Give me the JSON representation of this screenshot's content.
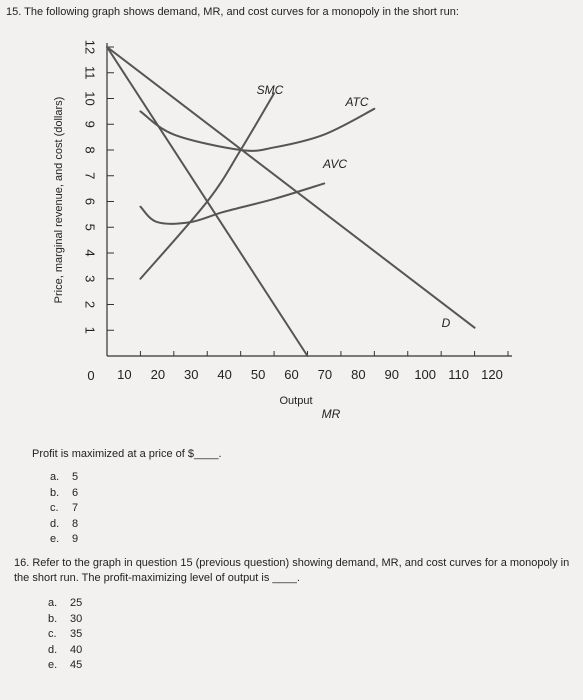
{
  "q15": {
    "title": "15. The following graph shows demand, MR, and cost curves for a monopoly in the short run:",
    "prompt": "Profit is maximized at a price of $____.",
    "options": [
      {
        "letter": "a.",
        "text": "5"
      },
      {
        "letter": "b.",
        "text": "6"
      },
      {
        "letter": "c.",
        "text": "7"
      },
      {
        "letter": "d.",
        "text": "8"
      },
      {
        "letter": "e.",
        "text": "9"
      }
    ]
  },
  "q16": {
    "text": "16. Refer to the graph in question 15 (previous question) showing demand, MR, and cost curves for a monopoly in the short run. The profit-maximizing level of output is ____.",
    "options": [
      {
        "letter": "a.",
        "text": "25"
      },
      {
        "letter": "b.",
        "text": "30"
      },
      {
        "letter": "c.",
        "text": "35"
      },
      {
        "letter": "d.",
        "text": "40"
      },
      {
        "letter": "e.",
        "text": "45"
      }
    ]
  },
  "chart_data": {
    "type": "line",
    "ylabel": "Price, marginal revenue, and cost (dollars)",
    "xlabel": "Output",
    "xlim": [
      0,
      120
    ],
    "ylim": [
      0,
      12
    ],
    "x_ticks": [
      10,
      20,
      30,
      40,
      50,
      60,
      70,
      80,
      90,
      100,
      110,
      120
    ],
    "y_ticks": [
      1,
      2,
      3,
      4,
      5,
      6,
      7,
      8,
      9,
      10,
      11,
      12
    ],
    "origin_label": "0",
    "series": [
      {
        "name": "D",
        "points": [
          [
            0,
            12
          ],
          [
            110,
            1.1
          ]
        ]
      },
      {
        "name": "MR",
        "points": [
          [
            0,
            12
          ],
          [
            60,
            0
          ]
        ]
      },
      {
        "name": "SMC",
        "points": [
          [
            10,
            3
          ],
          [
            30,
            6
          ],
          [
            40,
            8
          ],
          [
            50,
            10.2
          ]
        ]
      },
      {
        "name": "ATC",
        "points": [
          [
            10,
            9.5
          ],
          [
            20,
            8.6
          ],
          [
            40,
            8
          ],
          [
            50,
            8.1
          ],
          [
            65,
            8.6
          ],
          [
            80,
            9.6
          ]
        ]
      },
      {
        "name": "AVC",
        "points": [
          [
            10,
            5.8
          ],
          [
            15,
            5.2
          ],
          [
            25,
            5.2
          ],
          [
            35,
            5.6
          ],
          [
            50,
            6.1
          ],
          [
            65,
            6.7
          ]
        ]
      }
    ],
    "colors": {
      "curve": "#555555",
      "axis": "#333333"
    }
  }
}
